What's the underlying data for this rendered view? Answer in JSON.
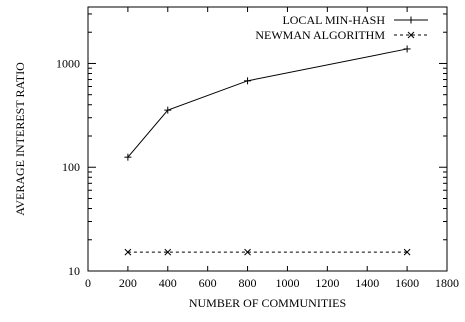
{
  "chart_data": {
    "type": "line",
    "xlabel": "NUMBER OF COMMUNITIES",
    "ylabel": "AVERAGE INTEREST RATIO",
    "xlim": [
      0,
      1800
    ],
    "ylim": [
      10,
      3500
    ],
    "yscale": "log",
    "grid": false,
    "legend_position": "top-right",
    "x_ticks": [
      0,
      200,
      400,
      600,
      800,
      1000,
      1200,
      1400,
      1600,
      1800
    ],
    "x_tick_labels": [
      "0",
      "200",
      "400",
      "600",
      "800",
      "1000",
      "1200",
      "1400",
      "1600",
      "1800"
    ],
    "y_ticks": [
      10,
      100,
      1000
    ],
    "y_tick_labels": [
      "10",
      "100",
      "1000"
    ],
    "series": [
      {
        "name": "LOCAL MIN-HASH",
        "marker": "plus",
        "line_style": "solid",
        "x": [
          200,
          400,
          800,
          1600
        ],
        "values": [
          125,
          355,
          680,
          1380
        ]
      },
      {
        "name": "NEWMAN ALGORITHM",
        "marker": "cross",
        "line_style": "dashed",
        "x": [
          200,
          400,
          800,
          1600
        ],
        "values": [
          15.2,
          15.2,
          15.2,
          15.2
        ]
      }
    ],
    "colors": {
      "line": "#000000",
      "background": "#ffffff"
    }
  }
}
